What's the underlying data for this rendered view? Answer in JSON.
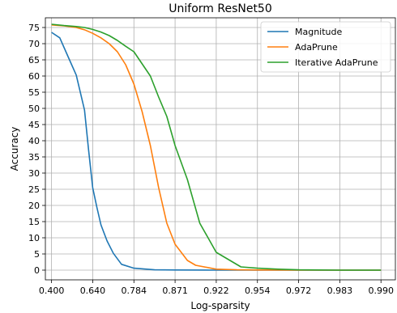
{
  "chart_data": {
    "type": "line",
    "title": "Uniform ResNet50",
    "xlabel": "Log-sparsity",
    "ylabel": "Accuracy",
    "x_tick_labels": [
      "0.400",
      "0.640",
      "0.784",
      "0.871",
      "0.922",
      "0.954",
      "0.972",
      "0.983",
      "0.990"
    ],
    "x_range": [
      -0.15,
      8.35
    ],
    "yticks": [
      0,
      5,
      10,
      15,
      20,
      25,
      30,
      35,
      40,
      45,
      50,
      55,
      60,
      65,
      70,
      75
    ],
    "ylim": [
      -3,
      78
    ],
    "grid": true,
    "legend_position": "top-right",
    "series": [
      {
        "name": "Magnitude",
        "color": "#1f77b4",
        "x": [
          0,
          0.2,
          0.4,
          0.6,
          0.8,
          0.9,
          1.0,
          1.1,
          1.2,
          1.35,
          1.5,
          1.7,
          2.0,
          2.5,
          3.0,
          4.0,
          5.0,
          6.0,
          7.0,
          8.0
        ],
        "y": [
          73.5,
          71.8,
          66.0,
          60.3,
          49.5,
          37.0,
          25.5,
          19.5,
          14.0,
          9.0,
          5.2,
          1.8,
          0.6,
          0.1,
          0.05,
          0.0,
          0.0,
          0.0,
          0.0,
          0.0
        ]
      },
      {
        "name": "AdaPrune",
        "color": "#ff7f0e",
        "x": [
          0,
          0.3,
          0.6,
          0.8,
          1.0,
          1.2,
          1.4,
          1.6,
          1.8,
          2.0,
          2.2,
          2.4,
          2.6,
          2.8,
          3.0,
          3.3,
          3.5,
          4.0,
          4.5,
          5.0,
          6.0,
          7.0,
          8.0
        ],
        "y": [
          75.8,
          75.5,
          75.0,
          74.3,
          73.2,
          71.8,
          70.0,
          67.5,
          63.5,
          57.5,
          49.0,
          38.5,
          25.5,
          14.5,
          8.0,
          3.0,
          1.5,
          0.3,
          0.1,
          0.05,
          0.0,
          0.0,
          0.0
        ]
      },
      {
        "name": "Iterative AdaPrune",
        "color": "#2ca02c",
        "x": [
          0,
          0.3,
          0.6,
          0.8,
          1.0,
          1.2,
          1.4,
          1.6,
          1.8,
          2.0,
          2.4,
          2.6,
          2.8,
          3.0,
          3.3,
          3.6,
          3.8,
          4.0,
          4.6,
          5.0,
          5.5,
          6.0,
          7.0,
          8.0
        ],
        "y": [
          76.0,
          75.6,
          75.3,
          75.0,
          74.4,
          73.6,
          72.5,
          71.0,
          69.2,
          67.5,
          60.0,
          53.5,
          47.5,
          38.5,
          28.0,
          14.5,
          10.0,
          5.5,
          1.0,
          0.6,
          0.3,
          0.1,
          0.0,
          0.0
        ]
      }
    ]
  }
}
